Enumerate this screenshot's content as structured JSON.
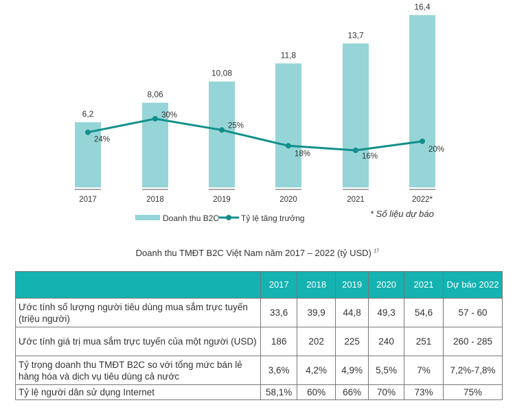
{
  "chart_data": {
    "type": "bar+line",
    "categories": [
      "2017",
      "2018",
      "2019",
      "2020",
      "2021",
      "2022*"
    ],
    "series": [
      {
        "name": "Doanh thu B2C",
        "type": "bar",
        "values": [
          6.2,
          8.06,
          10.08,
          11.8,
          13.7,
          16.4
        ],
        "labels": [
          "6,2",
          "8,06",
          "10,08",
          "11,8",
          "13,7",
          "16,4"
        ],
        "color": "#96d5d7"
      },
      {
        "name": "Tỷ lệ tăng trưởng",
        "type": "line",
        "values": [
          24,
          30,
          25,
          18,
          16,
          20
        ],
        "labels": [
          "24%",
          "30%",
          "25%",
          "18%",
          "16%",
          "20%"
        ],
        "color": "#118f8a"
      }
    ],
    "note": "* Số liệu dự báo",
    "legend": "bottom"
  },
  "caption": "Doanh thu TMĐT B2C Việt Nam năm 2017 – 2022 (tỷ USD)",
  "caption_sup": "17",
  "table": {
    "headers": [
      "",
      "2017",
      "2018",
      "2019",
      "2020",
      "2021",
      "Dự báo 2022"
    ],
    "rows": [
      [
        "Ước tính số lượng người tiêu dùng mua sắm trực tuyến (triệu người)",
        "33,6",
        "39,9",
        "44,8",
        "49,3",
        "54,6",
        "57 - 60"
      ],
      [
        "Ước tính giá trị mua sắm trực tuyến của một người (USD)",
        "186",
        "202",
        "225",
        "240",
        "251",
        "260 - 285"
      ],
      [
        "Tỷ trọng doanh thu TMĐT B2C so với tổng mức bán lẻ hàng hóa và dịch vụ tiêu dùng cả nước",
        "3,6%",
        "4,2%",
        "4,9%",
        "5,5%",
        "7%",
        "7,2%-7,8%"
      ],
      [
        "Tỷ lệ người dân sử dụng Internet",
        "58,1%",
        "60%",
        "66%",
        "70%",
        "73%",
        "75%"
      ]
    ]
  }
}
